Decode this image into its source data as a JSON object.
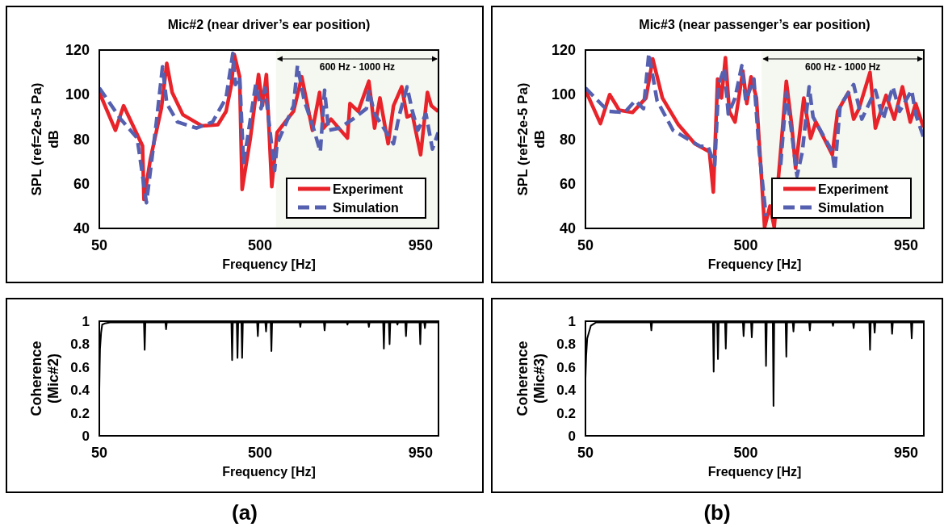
{
  "chart_data": [
    {
      "type": "line",
      "title": "Mic#2 (near driver’s ear position)",
      "xlabel": "Frequency [Hz]",
      "ylabel": "SPL (ref=2e-5 Pa)\ndB",
      "xlim": [
        50,
        1000
      ],
      "xticks": [
        50,
        500,
        950
      ],
      "ylim": [
        40,
        120
      ],
      "yticks": [
        40,
        60,
        80,
        100,
        120
      ],
      "legend": "bottom right",
      "bands": [
        {
          "axis": "x",
          "from": 545,
          "to": 1000,
          "label": "600 Hz - 1000 Hz",
          "color": "#f5f8f1"
        }
      ],
      "series": [
        {
          "name": "Experiment",
          "color": "#e8232a",
          "line_style": "solid",
          "x": [
            50,
            95,
            118,
            171,
            175,
            193,
            224,
            239,
            254,
            284,
            337,
            382,
            405,
            420,
            428,
            443,
            450,
            473,
            496,
            507,
            518,
            533,
            548,
            594,
            617,
            647,
            667,
            678,
            699,
            745,
            752,
            775,
            805,
            821,
            836,
            859,
            874,
            897,
            912,
            927,
            950,
            969,
            980,
            999
          ],
          "values": [
            101,
            84,
            95,
            77,
            53,
            71,
            94,
            114,
            101,
            91,
            86,
            86.5,
            92.5,
            104.5,
            118,
            108,
            57.5,
            80.4,
            109,
            95,
            109,
            58.7,
            83,
            92.5,
            108,
            84,
            101,
            85,
            89,
            80.5,
            96,
            92.5,
            106,
            85,
            98.5,
            78,
            95,
            103.5,
            90,
            91,
            73,
            101,
            95,
            92.5
          ]
        },
        {
          "name": "Simulation",
          "color": "#5560b0",
          "line_style": "dashed",
          "x": [
            50,
            110,
            156,
            182,
            209,
            227,
            239,
            269,
            322,
            367,
            405,
            424,
            431,
            443,
            454,
            465,
            488,
            503,
            514,
            541,
            548,
            594,
            605,
            624,
            647,
            669,
            681,
            692,
            722,
            760,
            798,
            805,
            821,
            836,
            874,
            889,
            912,
            927,
            942,
            965,
            983,
            999
          ],
          "values": [
            103,
            89,
            80.5,
            51.5,
            86.5,
            112.5,
            96,
            87.7,
            85,
            87.7,
            98.5,
            118.5,
            104.5,
            108,
            69.5,
            80.4,
            104.5,
            93.7,
            103,
            66,
            78,
            95,
            113,
            97.3,
            86.5,
            74.4,
            102,
            84,
            85,
            89,
            93.7,
            102,
            91.3,
            87.7,
            78,
            90,
            103.5,
            92.5,
            84,
            91.3,
            75.6,
            83
          ]
        }
      ]
    },
    {
      "type": "line",
      "title": "Mic#3 (near passenger’s ear position)",
      "xlabel": "Frequency [Hz]",
      "ylabel": "SPL (ref=2e-5 Pa)\ndB",
      "xlim": [
        50,
        1000
      ],
      "xticks": [
        50,
        500,
        950
      ],
      "ylim": [
        40,
        120
      ],
      "yticks": [
        40,
        60,
        80,
        100,
        120
      ],
      "legend": "bottom right",
      "bands": [
        {
          "axis": "x",
          "from": 545,
          "to": 1000,
          "label": "600 Hz - 1000 Hz",
          "color": "#f5f8f1"
        }
      ],
      "series": [
        {
          "name": "Experiment",
          "color": "#e8232a",
          "line_style": "solid",
          "x": [
            50,
            92,
            118,
            145,
            182,
            220,
            239,
            266,
            311,
            357,
            398,
            409,
            421,
            432,
            443,
            454,
            470,
            492,
            503,
            515,
            530,
            553,
            568,
            580,
            598,
            614,
            629,
            640,
            663,
            682,
            697,
            743,
            758,
            788,
            803,
            818,
            849,
            864,
            894,
            917,
            940,
            962,
            977,
            999
          ],
          "values": [
            102,
            87,
            100,
            93,
            92,
            98.5,
            116,
            98.5,
            86.5,
            78,
            74.4,
            56.3,
            107,
            98.5,
            116.6,
            92.5,
            87.7,
            110.6,
            96,
            108,
            98.5,
            40.6,
            50,
            40.6,
            74.4,
            106,
            86.5,
            67,
            98.5,
            80.4,
            87.7,
            73,
            92.5,
            101,
            89,
            93.7,
            110,
            85,
            99.7,
            89,
            103.5,
            87.7,
            96,
            85.3
          ]
        },
        {
          "name": "Simulation",
          "color": "#5560b0",
          "line_style": "dashed",
          "x": [
            50,
            114,
            160,
            190,
            213,
            228,
            251,
            296,
            372,
            394,
            413,
            424,
            440,
            451,
            470,
            489,
            500,
            523,
            538,
            557,
            576,
            598,
            614,
            629,
            644,
            659,
            678,
            689,
            743,
            750,
            765,
            803,
            826,
            864,
            886,
            913,
            932,
            966,
            977,
            999
          ],
          "values": [
            103,
            92.5,
            92,
            97.3,
            93.7,
            118.5,
            97.3,
            84,
            76.8,
            76.8,
            68.4,
            104.5,
            112,
            91.3,
            98.5,
            113,
            97.3,
            107,
            74.4,
            45.4,
            null,
            68.4,
            101,
            83,
            63.5,
            74.4,
            103.5,
            90,
            74.4,
            66,
            95,
            104.5,
            89,
            102,
            89,
            103.5,
            92.5,
            102,
            91.3,
            81
          ]
        }
      ]
    },
    {
      "type": "line",
      "xlabel": "Frequency [Hz]",
      "ylabel": "Coherence\n(Mic#2)",
      "xlim": [
        50,
        1000
      ],
      "xticks": [
        50,
        500,
        950
      ],
      "ylim": [
        0,
        1
      ],
      "yticks": [
        0,
        {
          "value": 0.2,
          "label": "0.2"
        },
        {
          "value": 0.4,
          "label": "0.4"
        },
        {
          "value": 0.6,
          "label": "0.6"
        },
        {
          "value": 0.8,
          "label": "0.8"
        },
        1
      ],
      "annotations": [
        "(a)"
      ],
      "series": [
        {
          "color": "#000000",
          "line_style": "solid",
          "x": [
            50,
            51,
            52,
            55,
            58,
            65,
            80,
            175,
            177,
            179,
            235,
            237,
            239,
            420,
            422,
            424,
            435,
            437,
            439,
            448,
            450,
            452,
            492,
            494,
            496,
            515,
            517,
            519,
            530,
            532,
            534,
            611,
            613,
            615,
            679,
            681,
            683,
            743,
            745,
            747,
            803,
            805,
            807,
            845,
            847,
            849,
            861,
            863,
            865,
            883,
            885,
            887,
            907,
            909,
            911,
            947,
            949,
            951,
            960,
            962,
            964,
            1000
          ],
          "values": [
            0.4,
            0.6,
            0.76,
            0.9,
            0.97,
            0.98,
            0.99,
            0.99,
            0.75,
            0.99,
            0.99,
            0.93,
            0.99,
            0.99,
            0.66,
            0.99,
            0.99,
            0.68,
            0.99,
            0.99,
            0.68,
            0.99,
            0.99,
            0.87,
            0.99,
            0.99,
            0.91,
            0.99,
            0.99,
            0.74,
            0.99,
            0.99,
            0.95,
            0.99,
            0.99,
            0.92,
            0.99,
            0.99,
            0.97,
            0.99,
            0.99,
            0.95,
            0.99,
            0.99,
            0.76,
            0.99,
            0.99,
            0.8,
            0.99,
            0.99,
            0.97,
            0.99,
            0.99,
            0.87,
            0.99,
            0.99,
            0.8,
            0.99,
            0.99,
            0.94,
            0.99,
            0.99
          ]
        }
      ]
    },
    {
      "type": "line",
      "xlabel": "Frequency [Hz]",
      "ylabel": "Coherence\n(Mic#3)",
      "xlim": [
        50,
        1000
      ],
      "xticks": [
        50,
        500,
        950
      ],
      "ylim": [
        0,
        1
      ],
      "yticks": [
        0,
        {
          "value": 0.2,
          "label": "0.2"
        },
        {
          "value": 0.4,
          "label": "0.4"
        },
        {
          "value": 0.6,
          "label": "0.6"
        },
        {
          "value": 0.8,
          "label": "0.8"
        },
        1
      ],
      "annotations": [
        "(b)"
      ],
      "series": [
        {
          "color": "#000000",
          "line_style": "solid",
          "x": [
            50,
            52,
            55,
            65,
            80,
            233,
            235,
            237,
            408,
            410,
            412,
            420,
            422,
            424,
            442,
            444,
            446,
            492,
            494,
            496,
            515,
            517,
            519,
            555,
            557,
            559,
            576,
            578,
            580,
            612,
            614,
            616,
            632,
            634,
            636,
            678,
            680,
            682,
            743,
            745,
            747,
            801,
            803,
            805,
            847,
            849,
            851,
            860,
            862,
            864,
            909,
            911,
            913,
            964,
            966,
            968,
            1000
          ],
          "values": [
            0.5,
            0.7,
            0.85,
            0.96,
            0.99,
            0.99,
            0.92,
            0.99,
            0.99,
            0.56,
            0.99,
            0.99,
            0.67,
            0.99,
            0.99,
            0.76,
            0.99,
            0.99,
            0.87,
            0.99,
            0.99,
            0.86,
            0.99,
            0.99,
            0.61,
            0.99,
            0.99,
            0.26,
            0.99,
            0.99,
            0.69,
            0.99,
            0.99,
            0.91,
            0.99,
            0.99,
            0.92,
            0.99,
            0.99,
            0.96,
            0.99,
            0.99,
            0.94,
            0.99,
            0.99,
            0.75,
            0.99,
            0.99,
            0.9,
            0.99,
            0.99,
            0.89,
            0.99,
            0.99,
            0.85,
            0.99,
            0.99
          ]
        }
      ]
    }
  ]
}
